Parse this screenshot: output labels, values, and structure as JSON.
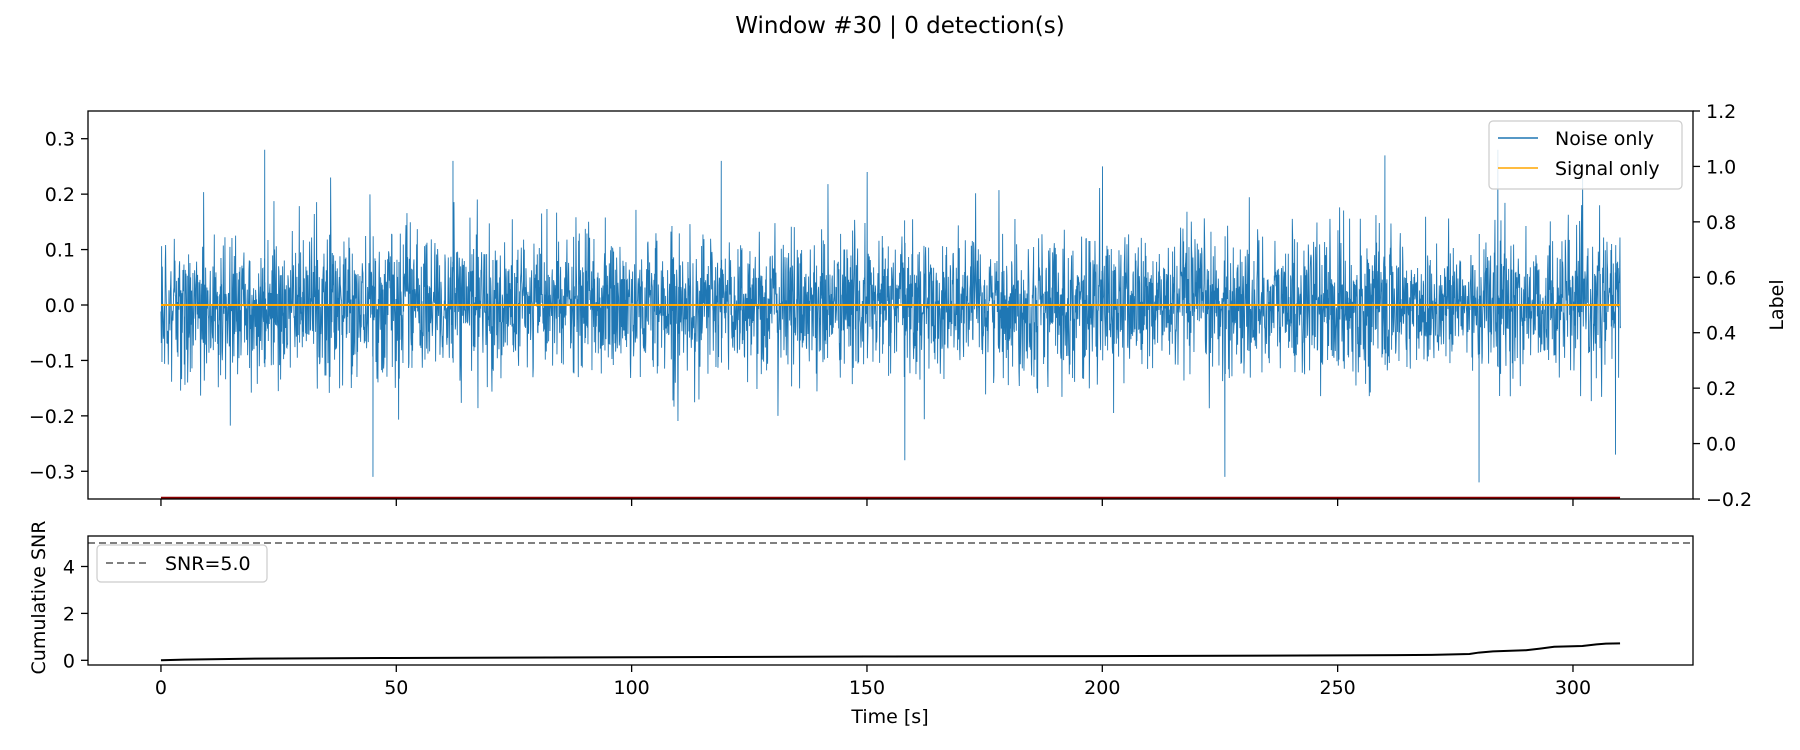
{
  "chart_data": [
    {
      "type": "line",
      "title": "Window #30 | 0 detection(s)",
      "xlim": [
        -15.5,
        325.5
      ],
      "ylim": [
        -0.35,
        0.35
      ],
      "yticks": [
        "−0.3",
        "−0.2",
        "−0.1",
        "0.0",
        "0.1",
        "0.2",
        "0.3"
      ],
      "ytick_values": [
        -0.3,
        -0.2,
        -0.1,
        0.0,
        0.1,
        0.2,
        0.3
      ],
      "y2label": "Label",
      "y2lim": [
        -0.2,
        1.2
      ],
      "y2ticks": [
        "−0.2",
        "0.0",
        "0.2",
        "0.4",
        "0.6",
        "0.8",
        "1.0",
        "1.2"
      ],
      "y2tick_values": [
        -0.2,
        0.0,
        0.2,
        0.4,
        0.6,
        0.8,
        1.0,
        1.2
      ],
      "legend": {
        "placement": "top-right",
        "entries": [
          "Noise only",
          "Signal only"
        ]
      },
      "series": [
        {
          "name": "Noise only",
          "color": "#1f77b4",
          "x_range": [
            0,
            310
          ],
          "envelope_amplitude_approx": 0.1,
          "peaks": [
            {
              "x": 22,
              "y": 0.28
            },
            {
              "x": 62,
              "y": 0.26
            },
            {
              "x": 119,
              "y": 0.26
            },
            {
              "x": 150,
              "y": 0.24
            },
            {
              "x": 200,
              "y": 0.25
            },
            {
              "x": 260,
              "y": 0.27
            },
            {
              "x": 284,
              "y": 0.28
            },
            {
              "x": 45,
              "y": -0.31
            },
            {
              "x": 158,
              "y": -0.28
            },
            {
              "x": 226,
              "y": -0.31
            },
            {
              "x": 280,
              "y": -0.32
            },
            {
              "x": 309,
              "y": -0.27
            }
          ]
        },
        {
          "name": "Signal only",
          "color": "#ffa500",
          "x": [
            0,
            310
          ],
          "y": [
            0.0,
            0.0
          ]
        },
        {
          "name": "",
          "color": "#8b0000",
          "axis": "y2",
          "x": [
            0,
            310
          ],
          "y": [
            -0.2,
            -0.2
          ]
        }
      ]
    },
    {
      "type": "line",
      "xlabel": "Time [s]",
      "ylabel": "Cumulative SNR",
      "xlim": [
        -15.5,
        325.5
      ],
      "ylim": [
        -0.2,
        5.3
      ],
      "xticks": [
        "0",
        "50",
        "100",
        "150",
        "200",
        "250",
        "300"
      ],
      "xtick_values": [
        0,
        50,
        100,
        150,
        200,
        250,
        300
      ],
      "yticks": [
        "0",
        "2",
        "4"
      ],
      "ytick_values": [
        0,
        2,
        4
      ],
      "legend": {
        "placement": "top-left",
        "entries": [
          "SNR=5.0"
        ]
      },
      "threshold": {
        "name": "SNR=5.0",
        "y": 5.0,
        "color": "#808080"
      },
      "series": [
        {
          "name": "",
          "color": "#000000",
          "x": [
            0,
            5,
            20,
            50,
            100,
            150,
            200,
            250,
            270,
            278,
            280,
            283,
            290,
            293,
            296,
            302,
            305,
            307,
            310
          ],
          "y": [
            0.0,
            0.03,
            0.07,
            0.1,
            0.13,
            0.16,
            0.18,
            0.21,
            0.23,
            0.27,
            0.33,
            0.38,
            0.43,
            0.5,
            0.58,
            0.61,
            0.68,
            0.71,
            0.72
          ]
        }
      ]
    }
  ]
}
